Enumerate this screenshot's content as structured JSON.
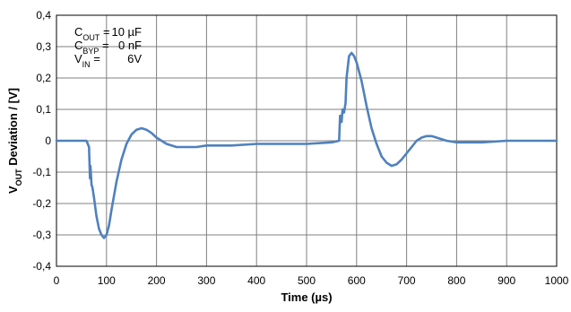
{
  "chart_data": {
    "type": "line",
    "xlabel": "Time (µs)",
    "ylabel_main": "V",
    "ylabel_sub": "OUT",
    "ylabel_rest": " Deviation / [V]",
    "xlim": [
      0,
      1000
    ],
    "ylim": [
      -0.4,
      0.4
    ],
    "grid": true,
    "x_ticks": [
      0,
      100,
      200,
      300,
      400,
      500,
      600,
      700,
      800,
      900,
      1000
    ],
    "x_tick_labels": [
      "0",
      "100",
      "200",
      "300",
      "400",
      "500",
      "600",
      "700",
      "800",
      "900",
      "1000"
    ],
    "y_ticks": [
      0.4,
      0.3,
      0.2,
      0.1,
      0,
      -0.1,
      -0.2,
      -0.3,
      -0.4
    ],
    "y_tick_labels": [
      "0,4",
      "0,3",
      "0,2",
      "0,1",
      "0",
      "-0,1",
      "-0,2",
      "-0,3",
      "-0,4"
    ],
    "series_color": "#4f81bd",
    "annotations": [
      {
        "main": "C",
        "sub": "OUT",
        "eq": " =",
        "value": "10 µF"
      },
      {
        "main": "C",
        "sub": "BYP",
        "eq": " =",
        "value": "0 nF"
      },
      {
        "main": "V",
        "sub": "IN",
        "eq": " =",
        "value": "6V"
      }
    ],
    "series": [
      {
        "x": [
          0,
          30,
          60,
          65,
          67,
          68,
          70,
          72,
          75,
          80,
          85,
          90,
          95,
          100,
          105,
          110,
          120,
          130,
          140,
          150,
          160,
          170,
          180,
          190,
          200,
          210,
          220,
          240,
          260,
          280,
          300,
          350,
          400,
          450,
          500,
          550,
          565,
          567,
          570,
          572,
          575,
          578,
          580,
          585,
          590,
          595,
          600,
          610,
          620,
          630,
          640,
          650,
          660,
          670,
          680,
          690,
          700,
          710,
          720,
          730,
          740,
          750,
          760,
          770,
          780,
          800,
          850,
          900,
          950,
          1000
        ],
        "y": [
          0,
          0,
          0,
          -0.02,
          -0.12,
          -0.08,
          -0.14,
          -0.15,
          -0.18,
          -0.24,
          -0.28,
          -0.3,
          -0.31,
          -0.3,
          -0.27,
          -0.22,
          -0.13,
          -0.06,
          -0.01,
          0.02,
          0.035,
          0.04,
          0.035,
          0.025,
          0.01,
          0,
          -0.01,
          -0.02,
          -0.02,
          -0.02,
          -0.015,
          -0.015,
          -0.01,
          -0.01,
          -0.01,
          -0.005,
          0,
          0.08,
          0.06,
          0.1,
          0.09,
          0.12,
          0.2,
          0.27,
          0.28,
          0.27,
          0.25,
          0.19,
          0.11,
          0.04,
          -0.01,
          -0.05,
          -0.07,
          -0.08,
          -0.075,
          -0.06,
          -0.04,
          -0.02,
          0,
          0.01,
          0.015,
          0.015,
          0.01,
          0.005,
          0,
          -0.005,
          -0.005,
          0,
          0,
          0
        ]
      }
    ]
  }
}
